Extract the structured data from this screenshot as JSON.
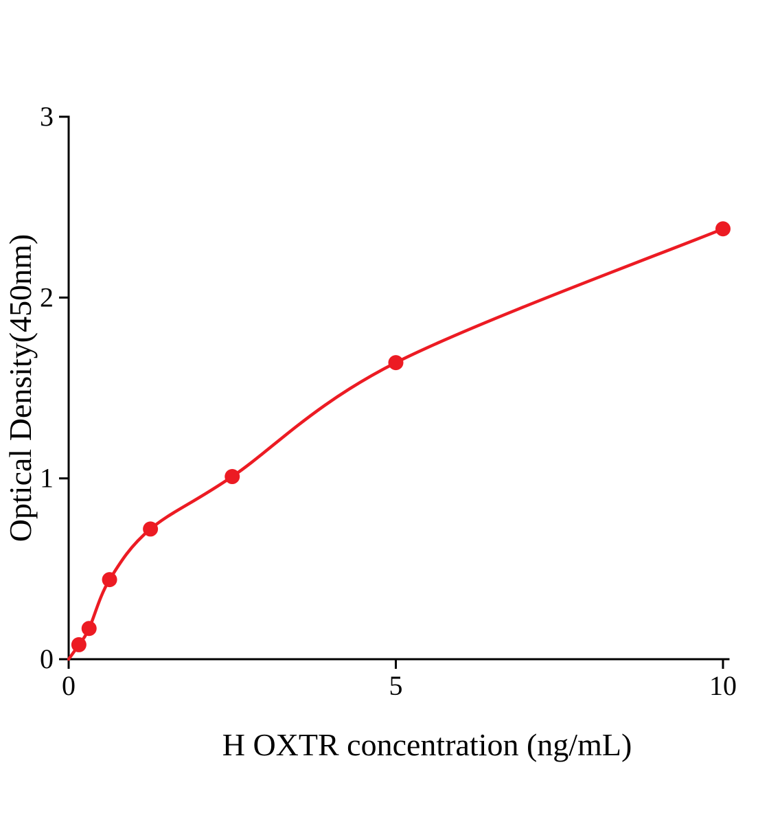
{
  "chart_data": {
    "type": "scatter",
    "title": "",
    "xlabel": "H OXTR concentration (ng/mL)",
    "ylabel": "Optical Density(450nm)",
    "x": [
      0.156,
      0.312,
      0.625,
      1.25,
      2.5,
      5,
      10
    ],
    "y": [
      0.08,
      0.17,
      0.44,
      0.72,
      1.01,
      1.64,
      2.38
    ],
    "fit_curve": "smooth curve through origin and data points",
    "curve_start": [
      0,
      0
    ],
    "xlim": [
      0,
      10
    ],
    "ylim": [
      0,
      3
    ],
    "x_ticks": [
      "0",
      "5",
      "10"
    ],
    "x_tick_values": [
      0,
      5,
      10
    ],
    "y_ticks": [
      "0",
      "1",
      "2",
      "3"
    ],
    "y_tick_values": [
      0,
      1,
      2,
      3
    ],
    "grid": false,
    "legend": "none",
    "point_color": "#EC1B23",
    "line_color": "#EC1B23",
    "axis_color": "#000000"
  }
}
